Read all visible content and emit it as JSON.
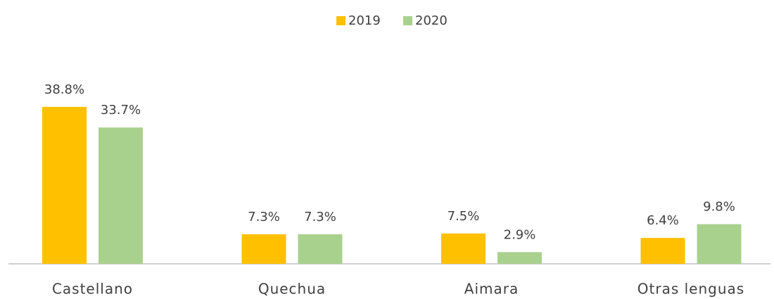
{
  "chart_data": {
    "type": "bar",
    "categories": [
      "Castellano",
      "Quechua",
      "Aimara",
      "Otras lenguas"
    ],
    "series": [
      {
        "name": "2019",
        "color": "#ffc000",
        "values": [
          38.8,
          7.3,
          7.5,
          6.4
        ],
        "value_labels": [
          "38.8%",
          "7.3%",
          "7.5%",
          "6.4%"
        ]
      },
      {
        "name": "2020",
        "color": "#a9d18e",
        "values": [
          33.7,
          7.3,
          2.9,
          9.8
        ],
        "value_labels": [
          "33.7%",
          "7.3%",
          "2.9%",
          "9.8%"
        ]
      }
    ],
    "legend": "top"
  }
}
